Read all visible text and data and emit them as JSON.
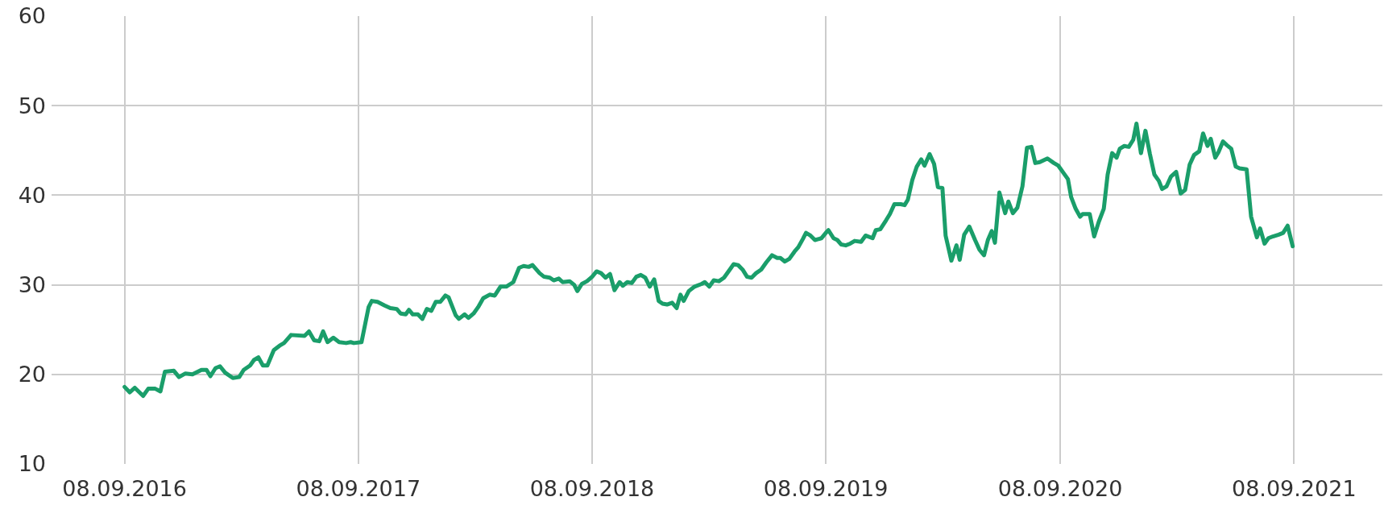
{
  "chart_data": {
    "type": "line",
    "grid": true,
    "marker": "none",
    "line_style": "solid",
    "xlim": [
      "2016-05-17",
      "2022-01-24"
    ],
    "xticks": [
      {
        "value": "2016-09-08",
        "label": "08.09.2016"
      },
      {
        "value": "2017-09-08",
        "label": "08.09.2017"
      },
      {
        "value": "2018-09-08",
        "label": "08.09.2018"
      },
      {
        "value": "2019-09-08",
        "label": "08.09.2019"
      },
      {
        "value": "2020-09-08",
        "label": "08.09.2020"
      },
      {
        "value": "2021-09-08",
        "label": "08.09.2021"
      }
    ],
    "ylim": [
      10,
      60
    ],
    "yticks": [
      10,
      20,
      30,
      40,
      50,
      60
    ],
    "series": [
      {
        "color": "#1a9e6a",
        "x": [
          "2016-09-08",
          "2016-09-16",
          "2016-09-24",
          "2016-10-07",
          "2016-10-15",
          "2016-10-26",
          "2016-11-03",
          "2016-11-10",
          "2016-11-24",
          "2016-12-02",
          "2016-12-12",
          "2016-12-23",
          "2017-01-06",
          "2017-01-14",
          "2017-01-20",
          "2017-01-28",
          "2017-02-04",
          "2017-02-12",
          "2017-02-24",
          "2017-03-06",
          "2017-03-13",
          "2017-03-23",
          "2017-03-29",
          "2017-04-05",
          "2017-04-12",
          "2017-04-19",
          "2017-04-29",
          "2017-05-08",
          "2017-05-15",
          "2017-05-26",
          "2017-06-16",
          "2017-06-23",
          "2017-07-01",
          "2017-07-09",
          "2017-07-15",
          "2017-07-22",
          "2017-07-31",
          "2017-08-09",
          "2017-08-20",
          "2017-08-27",
          "2017-09-01",
          "2017-09-13",
          "2017-09-24",
          "2017-09-29",
          "2017-10-08",
          "2017-10-19",
          "2017-10-28",
          "2017-11-07",
          "2017-11-13",
          "2017-11-21",
          "2017-11-26",
          "2017-12-02",
          "2017-12-10",
          "2017-12-17",
          "2017-12-24",
          "2017-12-31",
          "2018-01-07",
          "2018-01-14",
          "2018-01-22",
          "2018-01-27",
          "2018-02-07",
          "2018-02-12",
          "2018-02-21",
          "2018-02-27",
          "2018-03-07",
          "2018-03-14",
          "2018-03-22",
          "2018-04-01",
          "2018-04-09",
          "2018-04-18",
          "2018-04-27",
          "2018-05-08",
          "2018-05-17",
          "2018-05-24",
          "2018-06-01",
          "2018-06-07",
          "2018-06-18",
          "2018-06-25",
          "2018-07-04",
          "2018-07-10",
          "2018-07-18",
          "2018-07-24",
          "2018-08-04",
          "2018-08-11",
          "2018-08-16",
          "2018-08-23",
          "2018-08-31",
          "2018-09-08",
          "2018-09-15",
          "2018-09-22",
          "2018-09-29",
          "2018-10-06",
          "2018-10-13",
          "2018-10-21",
          "2018-10-26",
          "2018-11-02",
          "2018-11-09",
          "2018-11-16",
          "2018-11-23",
          "2018-11-30",
          "2018-12-07",
          "2018-12-14",
          "2018-12-21",
          "2018-12-27",
          "2019-01-03",
          "2019-01-11",
          "2019-01-18",
          "2019-01-24",
          "2019-01-29",
          "2019-02-06",
          "2019-02-15",
          "2019-02-26",
          "2019-03-03",
          "2019-03-10",
          "2019-03-17",
          "2019-03-25",
          "2019-04-02",
          "2019-04-11",
          "2019-04-17",
          "2019-04-24",
          "2019-05-01",
          "2019-05-08",
          "2019-05-15",
          "2019-05-22",
          "2019-05-30",
          "2019-06-07",
          "2019-06-16",
          "2019-06-24",
          "2019-06-29",
          "2019-07-06",
          "2019-07-13",
          "2019-07-21",
          "2019-07-27",
          "2019-08-03",
          "2019-08-08",
          "2019-08-15",
          "2019-08-22",
          "2019-09-01",
          "2019-09-08",
          "2019-09-12",
          "2019-09-20",
          "2019-09-26",
          "2019-10-02",
          "2019-10-09",
          "2019-10-16",
          "2019-10-23",
          "2019-11-02",
          "2019-11-09",
          "2019-11-20",
          "2019-11-25",
          "2019-12-02",
          "2019-12-11",
          "2019-12-17",
          "2019-12-24",
          "2020-01-03",
          "2020-01-09",
          "2020-01-14",
          "2020-01-21",
          "2020-01-28",
          "2020-02-04",
          "2020-02-09",
          "2020-02-17",
          "2020-02-24",
          "2020-03-01",
          "2020-03-08",
          "2020-03-13",
          "2020-03-22",
          "2020-03-30",
          "2020-04-04",
          "2020-04-11",
          "2020-04-19",
          "2020-04-28",
          "2020-05-05",
          "2020-05-12",
          "2020-05-18",
          "2020-05-24",
          "2020-05-29",
          "2020-06-05",
          "2020-06-14",
          "2020-06-19",
          "2020-06-26",
          "2020-07-03",
          "2020-07-11",
          "2020-07-18",
          "2020-07-25",
          "2020-07-31",
          "2020-08-07",
          "2020-08-19",
          "2020-08-29",
          "2020-09-05",
          "2020-09-13",
          "2020-09-20",
          "2020-09-25",
          "2020-10-02",
          "2020-10-09",
          "2020-10-13",
          "2020-10-24",
          "2020-10-31",
          "2020-11-07",
          "2020-11-15",
          "2020-11-21",
          "2020-11-28",
          "2020-12-05",
          "2020-12-10",
          "2020-12-17",
          "2020-12-24",
          "2020-12-31",
          "2021-01-05",
          "2021-01-12",
          "2021-01-19",
          "2021-01-26",
          "2021-02-02",
          "2021-02-09",
          "2021-02-14",
          "2021-02-21",
          "2021-02-28",
          "2021-03-08",
          "2021-03-15",
          "2021-03-22",
          "2021-03-29",
          "2021-04-05",
          "2021-04-13",
          "2021-04-19",
          "2021-04-26",
          "2021-05-01",
          "2021-05-08",
          "2021-05-13",
          "2021-05-20",
          "2021-05-26",
          "2021-06-02",
          "2021-06-09",
          "2021-06-15",
          "2021-06-26",
          "2021-07-03",
          "2021-07-12",
          "2021-07-17",
          "2021-07-24",
          "2021-07-30",
          "2021-08-06",
          "2021-08-15",
          "2021-08-22",
          "2021-08-29",
          "2021-09-06"
        ],
        "values": [
          18.6,
          18.0,
          18.5,
          17.6,
          18.4,
          18.4,
          18.1,
          20.3,
          20.4,
          19.7,
          20.1,
          20.0,
          20.5,
          20.5,
          19.8,
          20.7,
          20.9,
          20.2,
          19.6,
          19.7,
          20.5,
          21.0,
          21.6,
          21.9,
          21.0,
          21.0,
          22.7,
          23.2,
          23.5,
          24.4,
          24.3,
          24.8,
          23.8,
          23.7,
          24.8,
          23.6,
          24.1,
          23.6,
          23.5,
          23.6,
          23.5,
          23.6,
          27.5,
          28.2,
          28.1,
          27.7,
          27.4,
          27.3,
          26.8,
          26.7,
          27.2,
          26.7,
          26.7,
          26.2,
          27.3,
          27.1,
          28.1,
          28.1,
          28.8,
          28.6,
          26.6,
          26.2,
          26.7,
          26.3,
          26.8,
          27.5,
          28.5,
          28.9,
          28.8,
          29.8,
          29.8,
          30.3,
          31.9,
          32.1,
          32.0,
          32.2,
          31.3,
          30.9,
          30.8,
          30.5,
          30.7,
          30.3,
          30.4,
          30.0,
          29.3,
          30.1,
          30.4,
          30.9,
          31.5,
          31.3,
          30.8,
          31.2,
          29.4,
          30.3,
          29.9,
          30.3,
          30.2,
          30.9,
          31.1,
          30.8,
          29.8,
          30.6,
          28.2,
          27.9,
          27.8,
          28.0,
          27.4,
          28.9,
          28.2,
          29.3,
          29.8,
          30.1,
          30.3,
          29.8,
          30.5,
          30.4,
          30.8,
          31.7,
          32.3,
          32.2,
          31.7,
          30.9,
          30.8,
          31.3,
          31.7,
          32.5,
          33.3,
          33.0,
          33.0,
          32.6,
          32.9,
          33.7,
          34.2,
          35.1,
          35.8,
          35.5,
          35.0,
          35.2,
          35.8,
          36.1,
          35.2,
          35.0,
          34.5,
          34.4,
          34.6,
          34.9,
          34.8,
          35.5,
          35.2,
          36.1,
          36.2,
          37.2,
          37.9,
          39.0,
          39.0,
          38.9,
          39.5,
          41.7,
          43.2,
          44.0,
          43.3,
          44.6,
          43.5,
          40.9,
          40.8,
          35.5,
          32.7,
          34.4,
          32.8,
          35.6,
          36.5,
          35.0,
          33.9,
          33.3,
          35.0,
          36.0,
          34.7,
          40.3,
          38.0,
          39.3,
          38.0,
          38.6,
          41.0,
          45.3,
          45.4,
          43.6,
          43.7,
          44.1,
          43.6,
          43.3,
          42.5,
          41.8,
          39.8,
          38.5,
          37.6,
          37.9,
          37.9,
          35.4,
          37.0,
          38.5,
          42.3,
          44.7,
          44.2,
          45.2,
          45.5,
          45.4,
          46.2,
          48.0,
          44.7,
          47.2,
          44.6,
          42.3,
          41.6,
          40.7,
          41.0,
          42.1,
          42.6,
          40.2,
          40.6,
          43.4,
          44.5,
          44.9,
          46.9,
          45.5,
          46.3,
          44.2,
          44.8,
          46.0,
          45.6,
          45.2,
          43.2,
          43.0,
          42.9,
          37.6,
          35.3,
          36.3,
          34.6,
          35.2,
          35.4,
          35.6,
          35.8,
          36.6,
          34.3
        ]
      }
    ]
  }
}
